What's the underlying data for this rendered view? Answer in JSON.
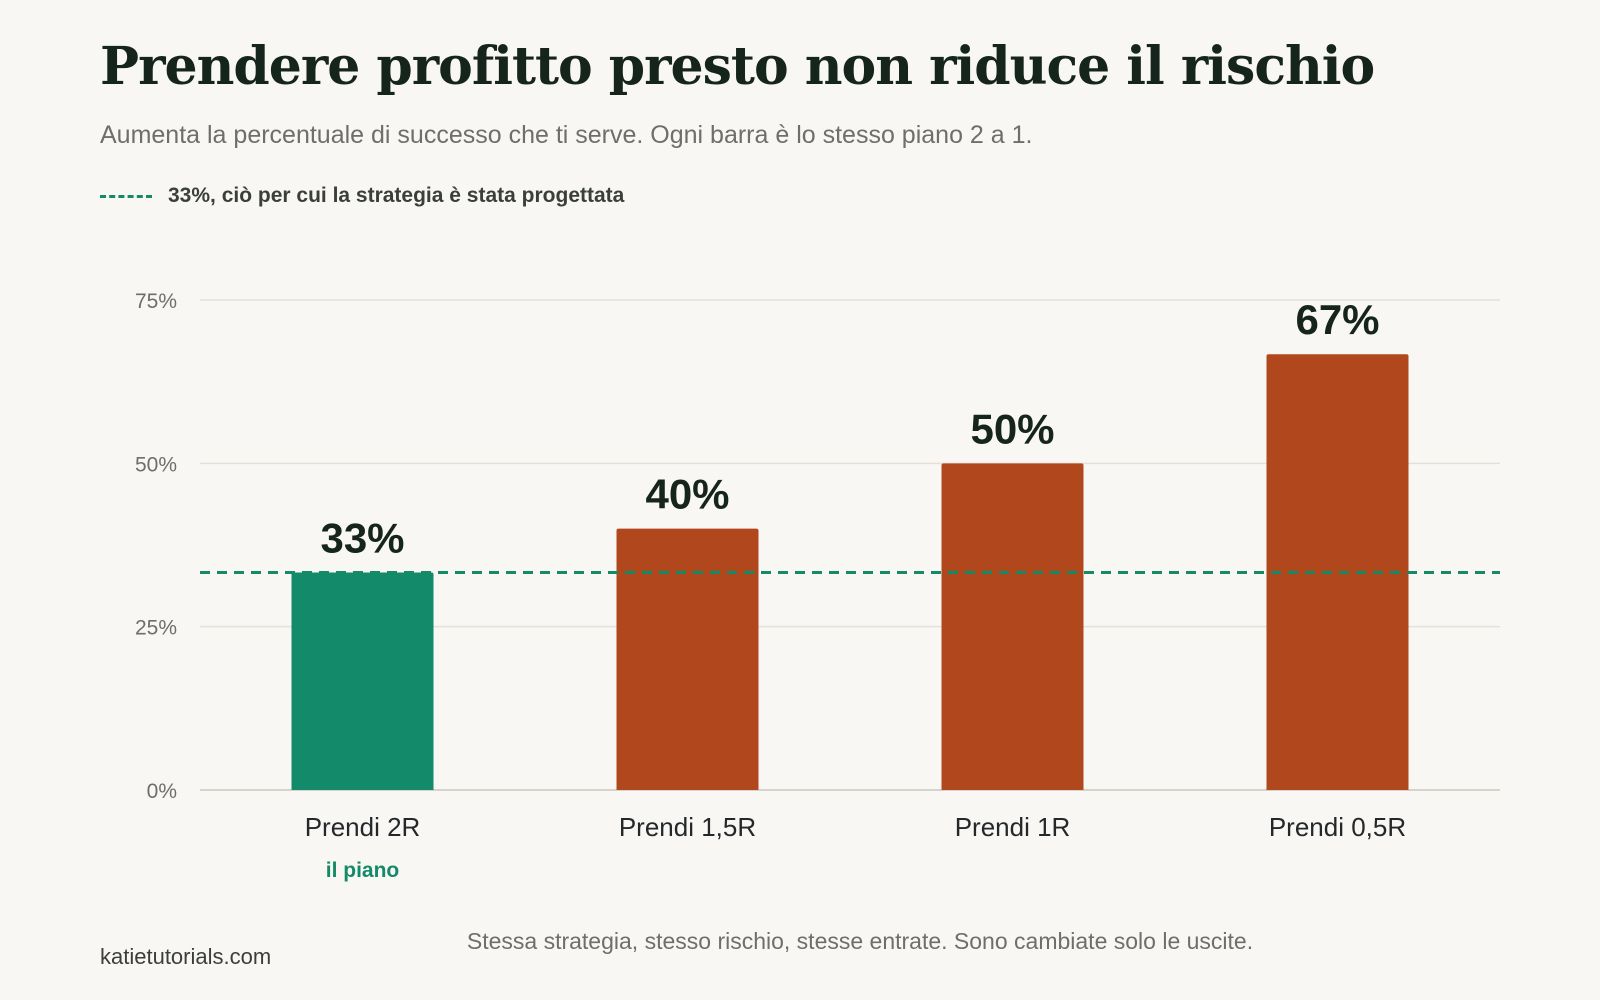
{
  "header": {
    "title": "Prendere profitto presto non riduce il rischio",
    "subtitle": "Aumenta la percentuale di successo che ti serve. Ogni barra è lo stesso piano 2 a 1."
  },
  "legend": {
    "label": "33%, ciò per cui la strategia è stata progettata",
    "color": "#148a69"
  },
  "footer": {
    "note": "Stessa strategia, stesso rischio, stesse entrate. Sono cambiate solo le uscite.",
    "source": "katietutorials.com"
  },
  "chart_data": {
    "type": "bar",
    "title": "Prendere profitto presto non riduce il rischio",
    "subtitle": "Aumenta la percentuale di successo che ti serve. Ogni barra è lo stesso piano 2 a 1.",
    "xlabel": "",
    "ylabel": "",
    "categories": [
      "Prendi 2R",
      "Prendi 1,5R",
      "Prendi 1R",
      "Prendi 0,5R"
    ],
    "sublabels": [
      "il piano",
      "",
      "",
      ""
    ],
    "values": [
      33.3,
      40,
      50,
      66.7
    ],
    "value_labels": [
      "33%",
      "40%",
      "50%",
      "67%"
    ],
    "bar_colors": [
      "#138a69",
      "#b1481d",
      "#b1481d",
      "#b1481d"
    ],
    "ylim": [
      0,
      75
    ],
    "yticks": [
      0,
      25,
      50,
      75
    ],
    "ytick_labels": [
      "0%",
      "25%",
      "50%",
      "75%"
    ],
    "reference_line": {
      "value": 33.3,
      "label": "33%, ciò per cui la strategia è stata progettata",
      "style": "dashed",
      "color": "#148a69"
    },
    "grid": true,
    "legend_position": "top-left"
  }
}
